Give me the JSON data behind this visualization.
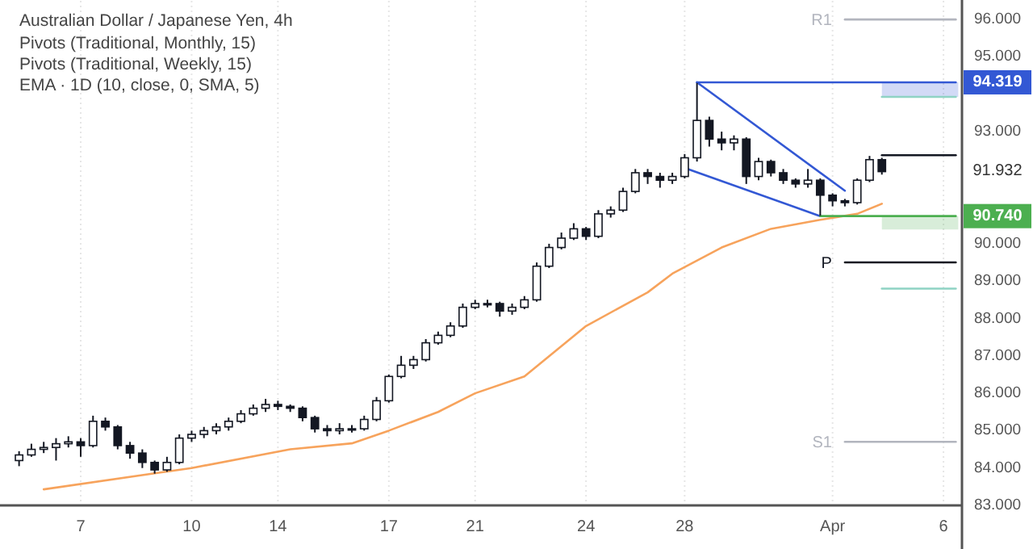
{
  "chart_data": {
    "type": "candlestick",
    "title": "Australian Dollar / Japanese Yen, 4h",
    "annotations": [
      "Pivots (Traditional, Monthly, 15)",
      "Pivots (Traditional, Weekly, 15)",
      "EMA · 1D (10, close, 0, SMA, 5)",
      {
        "text": "94.319",
        "y": 94.319
      },
      {
        "text": "91.932",
        "y": 91.932
      },
      {
        "text": "90.740",
        "y": 90.74
      }
    ],
    "color": "#131722",
    "categories": [
      null,
      null,
      null,
      null,
      null,
      "7",
      null,
      null,
      null,
      null,
      null,
      null,
      null,
      null,
      "10",
      null,
      null,
      null,
      null,
      null,
      null,
      "14",
      null,
      null,
      null,
      null,
      null,
      null,
      null,
      null,
      "17",
      null,
      null,
      null,
      null,
      null,
      null,
      "21",
      null,
      null,
      null,
      null,
      null,
      null,
      null,
      null,
      "24",
      null,
      null,
      null,
      null,
      null,
      null,
      null,
      "28",
      null,
      null,
      null,
      null,
      null,
      null,
      null,
      null,
      null,
      null,
      null,
      "Apr",
      null,
      null,
      null,
      null,
      null,
      null,
      null,
      null,
      "6",
      null
    ],
    "ohlc": [
      [
        84.2,
        84.45,
        84.05,
        84.35
      ],
      [
        84.35,
        84.65,
        84.3,
        84.5
      ],
      [
        84.5,
        84.7,
        84.4,
        84.55
      ],
      [
        84.55,
        84.8,
        84.2,
        84.65
      ],
      [
        84.65,
        84.85,
        84.55,
        84.7
      ],
      [
        84.7,
        84.8,
        84.3,
        84.6
      ],
      [
        84.6,
        85.4,
        84.55,
        85.25
      ],
      [
        85.25,
        85.35,
        85.0,
        85.1
      ],
      [
        85.1,
        85.15,
        84.5,
        84.6
      ],
      [
        84.6,
        84.7,
        84.25,
        84.4
      ],
      [
        84.4,
        84.5,
        84.0,
        84.15
      ],
      [
        84.15,
        84.2,
        83.85,
        83.95
      ],
      [
        83.95,
        84.3,
        83.9,
        84.15
      ],
      [
        84.15,
        84.9,
        84.1,
        84.8
      ],
      [
        84.8,
        85.0,
        84.7,
        84.9
      ],
      [
        84.9,
        85.1,
        84.8,
        85.0
      ],
      [
        85.0,
        85.2,
        84.9,
        85.1
      ],
      [
        85.1,
        85.35,
        85.0,
        85.25
      ],
      [
        85.25,
        85.55,
        85.2,
        85.45
      ],
      [
        85.45,
        85.7,
        85.4,
        85.6
      ],
      [
        85.6,
        85.85,
        85.5,
        85.7
      ],
      [
        85.7,
        85.8,
        85.55,
        85.65
      ],
      [
        85.65,
        85.7,
        85.5,
        85.6
      ],
      [
        85.6,
        85.65,
        85.25,
        85.35
      ],
      [
        85.35,
        85.4,
        84.95,
        85.05
      ],
      [
        85.05,
        85.15,
        84.85,
        85.0
      ],
      [
        85.0,
        85.2,
        84.9,
        85.05
      ],
      [
        85.05,
        85.15,
        84.95,
        85.05
      ],
      [
        85.05,
        85.4,
        85.0,
        85.3
      ],
      [
        85.3,
        85.9,
        85.25,
        85.8
      ],
      [
        85.8,
        86.5,
        85.75,
        86.45
      ],
      [
        86.45,
        87.0,
        86.4,
        86.75
      ],
      [
        86.75,
        87.0,
        86.65,
        86.9
      ],
      [
        86.9,
        87.45,
        86.85,
        87.35
      ],
      [
        87.35,
        87.65,
        87.3,
        87.55
      ],
      [
        87.55,
        87.9,
        87.5,
        87.8
      ],
      [
        87.8,
        88.4,
        87.75,
        88.3
      ],
      [
        88.3,
        88.5,
        88.25,
        88.4
      ],
      [
        88.4,
        88.5,
        88.3,
        88.4
      ],
      [
        88.4,
        88.45,
        88.05,
        88.2
      ],
      [
        88.2,
        88.4,
        88.1,
        88.3
      ],
      [
        88.3,
        88.6,
        88.25,
        88.5
      ],
      [
        88.5,
        89.5,
        88.45,
        89.4
      ],
      [
        89.4,
        90.0,
        89.35,
        89.9
      ],
      [
        89.9,
        90.3,
        89.85,
        90.15
      ],
      [
        90.15,
        90.55,
        90.1,
        90.4
      ],
      [
        90.4,
        90.45,
        90.1,
        90.2
      ],
      [
        90.2,
        90.9,
        90.15,
        90.8
      ],
      [
        90.8,
        91.0,
        90.7,
        90.9
      ],
      [
        90.9,
        91.5,
        90.85,
        91.4
      ],
      [
        91.4,
        92.0,
        91.35,
        91.9
      ],
      [
        91.9,
        92.0,
        91.6,
        91.8
      ],
      [
        91.8,
        91.9,
        91.5,
        91.7
      ],
      [
        91.7,
        91.9,
        91.6,
        91.8
      ],
      [
        91.8,
        92.4,
        91.75,
        92.3
      ],
      [
        92.3,
        94.3,
        92.2,
        93.3
      ],
      [
        93.3,
        93.4,
        92.6,
        92.8
      ],
      [
        92.8,
        93.0,
        92.5,
        92.7
      ],
      [
        92.7,
        92.9,
        92.5,
        92.8
      ],
      [
        92.8,
        92.85,
        91.6,
        91.8
      ],
      [
        91.8,
        92.3,
        91.7,
        92.2
      ],
      [
        92.2,
        92.25,
        91.8,
        91.9
      ],
      [
        91.9,
        92.0,
        91.6,
        91.7
      ],
      [
        91.7,
        91.75,
        91.5,
        91.6
      ],
      [
        91.6,
        92.0,
        91.5,
        91.7
      ],
      [
        91.7,
        91.75,
        90.75,
        91.3
      ],
      [
        91.3,
        91.35,
        91.0,
        91.15
      ],
      [
        91.15,
        91.2,
        91.0,
        91.1
      ],
      [
        91.1,
        91.75,
        91.05,
        91.7
      ],
      [
        91.7,
        92.35,
        91.65,
        92.25
      ],
      [
        92.25,
        92.3,
        91.85,
        91.93
      ],
      null,
      null,
      null,
      null,
      null,
      null
    ],
    "series": [
      {
        "type": "line",
        "color": "#f7a35c",
        "values": [
          null,
          null,
          83.43,
          null,
          null,
          null,
          null,
          null,
          null,
          null,
          null,
          83.86,
          null,
          null,
          84.0,
          null,
          null,
          null,
          null,
          null,
          null,
          null,
          84.5,
          null,
          null,
          null,
          null,
          84.66,
          null,
          null,
          85.0,
          null,
          null,
          null,
          85.5,
          null,
          null,
          86.0,
          null,
          null,
          null,
          86.45,
          null,
          null,
          null,
          null,
          87.8,
          null,
          null,
          null,
          null,
          88.7,
          null,
          89.2,
          null,
          null,
          null,
          89.9,
          null,
          null,
          null,
          90.4,
          null,
          null,
          null,
          90.64,
          null,
          null,
          90.8,
          null,
          91.07,
          null,
          null,
          null,
          null,
          null,
          null
        ]
      },
      {
        "type": "line",
        "color": "#3358d4",
        "values": [
          null,
          null,
          null,
          null,
          null,
          null,
          null,
          null,
          null,
          null,
          null,
          null,
          null,
          null,
          null,
          null,
          null,
          null,
          null,
          null,
          null,
          null,
          null,
          null,
          null,
          null,
          null,
          null,
          null,
          null,
          null,
          null,
          null,
          null,
          null,
          null,
          null,
          null,
          null,
          null,
          null,
          null,
          null,
          null,
          null,
          null,
          null,
          null,
          null,
          null,
          null,
          null,
          null,
          null,
          null,
          94.319,
          null,
          null,
          null,
          null,
          null,
          null,
          null,
          null,
          null,
          null,
          null,
          91.42,
          null,
          null,
          null,
          null,
          null,
          null,
          null,
          null,
          null
        ]
      },
      {
        "type": "line",
        "color": "#3358d4",
        "values": [
          null,
          null,
          null,
          null,
          null,
          null,
          null,
          null,
          null,
          null,
          null,
          null,
          null,
          null,
          null,
          null,
          null,
          null,
          null,
          null,
          null,
          null,
          null,
          null,
          null,
          null,
          null,
          null,
          null,
          null,
          null,
          null,
          null,
          null,
          null,
          null,
          null,
          null,
          null,
          null,
          null,
          null,
          null,
          null,
          null,
          null,
          null,
          null,
          null,
          null,
          null,
          null,
          null,
          null,
          92.03,
          null,
          null,
          null,
          null,
          null,
          null,
          null,
          null,
          null,
          null,
          90.74,
          null,
          null,
          null,
          null,
          null,
          null,
          null,
          null,
          null,
          null,
          null
        ]
      },
      {
        "type": "line",
        "color": "#3358d4",
        "values": [
          null,
          null,
          null,
          null,
          null,
          null,
          null,
          null,
          null,
          null,
          null,
          null,
          null,
          null,
          null,
          null,
          null,
          null,
          null,
          null,
          null,
          null,
          null,
          null,
          null,
          null,
          null,
          null,
          null,
          null,
          null,
          null,
          null,
          null,
          null,
          null,
          null,
          null,
          null,
          null,
          null,
          null,
          null,
          null,
          null,
          null,
          null,
          null,
          null,
          null,
          null,
          null,
          null,
          null,
          null,
          94.319,
          null,
          null,
          null,
          null,
          null,
          null,
          null,
          null,
          null,
          null,
          null,
          null,
          null,
          null,
          null,
          null,
          null,
          null,
          null,
          null,
          94.319
        ],
        "lower": [
          null,
          null,
          null,
          null,
          null,
          null,
          null,
          null,
          null,
          null,
          null,
          null,
          null,
          null,
          null,
          null,
          null,
          null,
          null,
          null,
          null,
          null,
          null,
          null,
          null,
          null,
          null,
          null,
          null,
          null,
          null,
          null,
          null,
          null,
          null,
          null,
          null,
          null,
          null,
          null,
          null,
          null,
          null,
          null,
          null,
          null,
          null,
          null,
          null,
          null,
          null,
          null,
          null,
          null,
          null,
          null,
          null,
          null,
          null,
          null,
          null,
          null,
          null,
          null,
          null,
          null,
          null,
          null,
          null,
          null,
          93.93,
          null,
          null,
          null,
          null,
          null,
          93.93
        ],
        "upper": [
          null,
          null,
          null,
          null,
          null,
          null,
          null,
          null,
          null,
          null,
          null,
          null,
          null,
          null,
          null,
          null,
          null,
          null,
          null,
          null,
          null,
          null,
          null,
          null,
          null,
          null,
          null,
          null,
          null,
          null,
          null,
          null,
          null,
          null,
          null,
          null,
          null,
          null,
          null,
          null,
          null,
          null,
          null,
          null,
          null,
          null,
          null,
          null,
          null,
          null,
          null,
          null,
          null,
          null,
          null,
          null,
          null,
          null,
          null,
          null,
          null,
          null,
          null,
          null,
          null,
          null,
          null,
          null,
          null,
          null,
          94.319,
          null,
          null,
          null,
          null,
          null,
          94.319
        ]
      },
      {
        "type": "line",
        "color": "#4caf50",
        "lower": [
          null,
          null,
          null,
          null,
          null,
          null,
          null,
          null,
          null,
          null,
          null,
          null,
          null,
          null,
          null,
          null,
          null,
          null,
          null,
          null,
          null,
          null,
          null,
          null,
          null,
          null,
          null,
          null,
          null,
          null,
          null,
          null,
          null,
          null,
          null,
          null,
          null,
          null,
          null,
          null,
          null,
          null,
          null,
          null,
          null,
          null,
          null,
          null,
          null,
          null,
          null,
          null,
          null,
          null,
          null,
          null,
          null,
          null,
          null,
          null,
          null,
          null,
          null,
          null,
          null,
          null,
          null,
          null,
          null,
          null,
          90.38,
          null,
          null,
          null,
          null,
          null,
          90.38
        ],
        "upper": [
          null,
          null,
          null,
          null,
          null,
          null,
          null,
          null,
          null,
          null,
          null,
          null,
          null,
          null,
          null,
          null,
          null,
          null,
          null,
          null,
          null,
          null,
          null,
          null,
          null,
          null,
          null,
          null,
          null,
          null,
          null,
          null,
          null,
          null,
          null,
          null,
          null,
          null,
          null,
          null,
          null,
          null,
          null,
          null,
          null,
          null,
          null,
          null,
          null,
          null,
          null,
          null,
          null,
          null,
          null,
          null,
          null,
          null,
          null,
          null,
          null,
          null,
          null,
          null,
          null,
          null,
          null,
          null,
          null,
          null,
          90.74,
          null,
          null,
          null,
          null,
          null,
          90.74
        ],
        "values": [
          null,
          null,
          null,
          null,
          null,
          null,
          null,
          null,
          null,
          null,
          null,
          null,
          null,
          null,
          null,
          null,
          null,
          null,
          null,
          null,
          null,
          null,
          null,
          null,
          null,
          null,
          null,
          null,
          null,
          null,
          null,
          null,
          null,
          null,
          null,
          null,
          null,
          null,
          null,
          null,
          null,
          null,
          null,
          null,
          null,
          null,
          null,
          null,
          null,
          null,
          null,
          null,
          null,
          null,
          null,
          null,
          null,
          null,
          null,
          null,
          null,
          null,
          null,
          null,
          null,
          90.74,
          null,
          null,
          null,
          null,
          null,
          null,
          null,
          null,
          null,
          null,
          90.74
        ]
      },
      {
        "type": "line",
        "name": "R1",
        "color": "#b2b5be",
        "values": [
          null,
          null,
          null,
          null,
          null,
          null,
          null,
          null,
          null,
          null,
          null,
          null,
          null,
          null,
          null,
          null,
          null,
          null,
          null,
          null,
          null,
          null,
          null,
          null,
          null,
          null,
          null,
          null,
          null,
          null,
          null,
          null,
          null,
          null,
          null,
          null,
          null,
          null,
          null,
          null,
          null,
          null,
          null,
          null,
          null,
          null,
          null,
          null,
          null,
          null,
          null,
          null,
          null,
          null,
          null,
          null,
          null,
          null,
          null,
          null,
          null,
          null,
          null,
          null,
          null,
          null,
          null,
          96,
          null,
          null,
          null,
          null,
          null,
          null,
          null,
          null,
          96
        ]
      },
      {
        "type": "line",
        "color": "#8fd3c4",
        "values": [
          null,
          null,
          null,
          null,
          null,
          null,
          null,
          null,
          null,
          null,
          null,
          null,
          null,
          null,
          null,
          null,
          null,
          null,
          null,
          null,
          null,
          null,
          null,
          null,
          null,
          null,
          null,
          null,
          null,
          null,
          null,
          null,
          null,
          null,
          null,
          null,
          null,
          null,
          null,
          null,
          null,
          null,
          null,
          null,
          null,
          null,
          null,
          null,
          null,
          null,
          null,
          null,
          null,
          null,
          null,
          null,
          null,
          null,
          null,
          null,
          null,
          null,
          null,
          null,
          null,
          null,
          null,
          null,
          null,
          null,
          93.93,
          null,
          null,
          null,
          null,
          null,
          93.93
        ]
      },
      {
        "type": "line",
        "color": "#131722",
        "values": [
          null,
          null,
          null,
          null,
          null,
          null,
          null,
          null,
          null,
          null,
          null,
          null,
          null,
          null,
          null,
          null,
          null,
          null,
          null,
          null,
          null,
          null,
          null,
          null,
          null,
          null,
          null,
          null,
          null,
          null,
          null,
          null,
          null,
          null,
          null,
          null,
          null,
          null,
          null,
          null,
          null,
          null,
          null,
          null,
          null,
          null,
          null,
          null,
          null,
          null,
          null,
          null,
          null,
          null,
          null,
          null,
          null,
          null,
          null,
          null,
          null,
          null,
          null,
          null,
          null,
          null,
          null,
          null,
          null,
          null,
          92.37,
          null,
          null,
          null,
          null,
          null,
          92.37
        ]
      },
      {
        "type": "line",
        "name": "P",
        "color": "#131722",
        "values": [
          null,
          null,
          null,
          null,
          null,
          null,
          null,
          null,
          null,
          null,
          null,
          null,
          null,
          null,
          null,
          null,
          null,
          null,
          null,
          null,
          null,
          null,
          null,
          null,
          null,
          null,
          null,
          null,
          null,
          null,
          null,
          null,
          null,
          null,
          null,
          null,
          null,
          null,
          null,
          null,
          null,
          null,
          null,
          null,
          null,
          null,
          null,
          null,
          null,
          null,
          null,
          null,
          null,
          null,
          null,
          null,
          null,
          null,
          null,
          null,
          null,
          null,
          null,
          null,
          null,
          null,
          null,
          89.5,
          null,
          null,
          null,
          null,
          null,
          null,
          null,
          null,
          89.5
        ]
      },
      {
        "type": "line",
        "color": "#8fd3c4",
        "values": [
          null,
          null,
          null,
          null,
          null,
          null,
          null,
          null,
          null,
          null,
          null,
          null,
          null,
          null,
          null,
          null,
          null,
          null,
          null,
          null,
          null,
          null,
          null,
          null,
          null,
          null,
          null,
          null,
          null,
          null,
          null,
          null,
          null,
          null,
          null,
          null,
          null,
          null,
          null,
          null,
          null,
          null,
          null,
          null,
          null,
          null,
          null,
          null,
          null,
          null,
          null,
          null,
          null,
          null,
          null,
          null,
          null,
          null,
          null,
          null,
          null,
          null,
          null,
          null,
          null,
          null,
          null,
          null,
          null,
          null,
          88.8,
          null,
          null,
          null,
          null,
          null,
          88.8
        ]
      },
      {
        "type": "line",
        "name": "S1",
        "color": "#b2b5be",
        "values": [
          null,
          null,
          null,
          null,
          null,
          null,
          null,
          null,
          null,
          null,
          null,
          null,
          null,
          null,
          null,
          null,
          null,
          null,
          null,
          null,
          null,
          null,
          null,
          null,
          null,
          null,
          null,
          null,
          null,
          null,
          null,
          null,
          null,
          null,
          null,
          null,
          null,
          null,
          null,
          null,
          null,
          null,
          null,
          null,
          null,
          null,
          null,
          null,
          null,
          null,
          null,
          null,
          null,
          null,
          null,
          null,
          null,
          null,
          null,
          null,
          null,
          null,
          null,
          null,
          null,
          null,
          null,
          84.7,
          null,
          null,
          null,
          null,
          null,
          null,
          null,
          null,
          84.7
        ]
      }
    ],
    "ylim": [
      83,
      96.5
    ],
    "yticks": [
      {
        "value": 83,
        "label": "83.000"
      },
      {
        "value": 84,
        "label": "84.000"
      },
      {
        "value": 85,
        "label": "85.000"
      },
      {
        "value": 86,
        "label": "86.000"
      },
      {
        "value": 87,
        "label": "87.000"
      },
      {
        "value": 88,
        "label": "88.000"
      },
      {
        "value": 89,
        "label": "89.000"
      },
      {
        "value": 90,
        "label": "90.000"
      },
      {
        "value": 93,
        "label": "93.000"
      },
      {
        "value": 95,
        "label": "95.000"
      },
      {
        "value": 96,
        "label": "96.000"
      }
    ],
    "grid": "x",
    "line_style": "solid"
  }
}
